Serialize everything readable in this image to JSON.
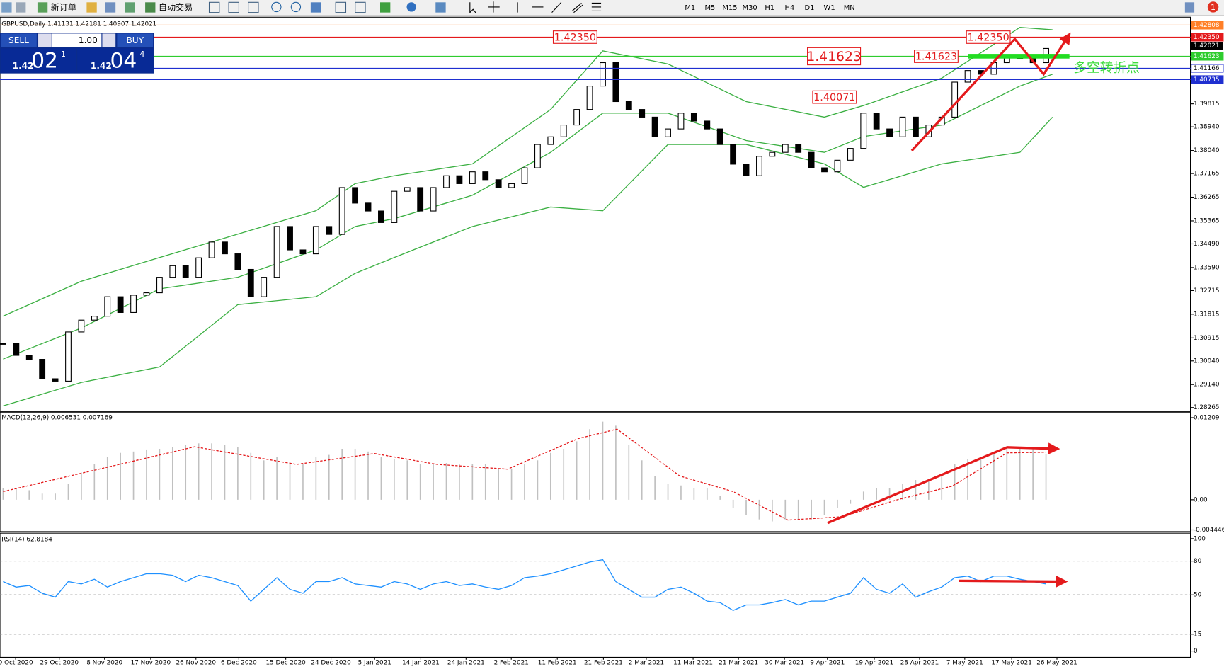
{
  "toolbar": {
    "new_order": "新订单",
    "auto_trading": "自动交易",
    "timeframes": [
      "M1",
      "M5",
      "M15",
      "M30",
      "H1",
      "H4",
      "D1",
      "W1",
      "MN"
    ],
    "notifications": "1"
  },
  "trade_panel": {
    "sell": "SELL",
    "lots": "1.00",
    "buy": "BUY",
    "bid": {
      "prefix": "1.42",
      "digits": "02",
      "pip": "1"
    },
    "ask": {
      "prefix": "1.42",
      "digits": "04",
      "pip": "4"
    }
  },
  "chart_data": [
    {
      "type": "candlestick",
      "title": "GBPUSD,Daily  1.41131 1.42181 1.40907 1.42021",
      "xlim": [
        -0.24,
        91.08
      ],
      "ylim": [
        1.2815,
        1.4305
      ],
      "close": [
        1.307,
        1.3025,
        1.301,
        1.2936,
        1.2927,
        1.3114,
        1.3159,
        1.3174,
        1.3248,
        1.3188,
        1.3254,
        1.3263,
        1.3322,
        1.3366,
        1.3322,
        1.3396,
        1.3456,
        1.3411,
        1.3352,
        1.3248,
        1.3322,
        1.3515,
        1.3426,
        1.3411,
        1.3515,
        1.3485,
        1.3663,
        1.3604,
        1.3574,
        1.353,
        1.3649,
        1.3663,
        1.3574,
        1.3663,
        1.3708,
        1.3678,
        1.3723,
        1.3693,
        1.3663,
        1.3678,
        1.3738,
        1.3827,
        1.3856,
        1.3901,
        1.396,
        1.4049,
        1.4138,
        1.399,
        1.396,
        1.3931,
        1.3856,
        1.3886,
        1.3946,
        1.3916,
        1.3886,
        1.3827,
        1.3752,
        1.3708,
        1.3782,
        1.3797,
        1.3827,
        1.3797,
        1.3738,
        1.3723,
        1.3767,
        1.3812,
        1.3946,
        1.3886,
        1.3856,
        1.3931,
        1.3856,
        1.3901,
        1.3931,
        1.4064,
        1.4108,
        1.4094,
        1.4138,
        1.4168,
        1.4153,
        1.4138,
        1.4192
      ],
      "bands": {
        "x": [
          0,
          6,
          12,
          18,
          24,
          27,
          30,
          36,
          42,
          46,
          51,
          57,
          63,
          66,
          72,
          78,
          80.5
        ],
        "upper": [
          1.3174,
          1.3307,
          1.3397,
          1.3486,
          1.3575,
          1.3678,
          1.3708,
          1.3753,
          1.396,
          1.4183,
          1.4133,
          1.399,
          1.3931,
          1.3975,
          1.4079,
          1.4272,
          1.4263
        ],
        "middle": [
          1.3011,
          1.3129,
          1.3278,
          1.3322,
          1.3426,
          1.3515,
          1.3545,
          1.3634,
          1.3797,
          1.3946,
          1.3946,
          1.3842,
          1.3797,
          1.3857,
          1.3901,
          1.4049,
          1.4094
        ],
        "lower": [
          1.2833,
          1.2922,
          1.2981,
          1.3218,
          1.3248,
          1.3337,
          1.3397,
          1.3515,
          1.3589,
          1.3575,
          1.3827,
          1.3827,
          1.3753,
          1.3664,
          1.3753,
          1.3797,
          1.3931
        ],
        "color": "#3cb043"
      },
      "levels": [
        {
          "value": 1.42808,
          "label": "1.42808",
          "color": "#ff7f27",
          "filled": true
        },
        {
          "value": 1.4235,
          "label": "1.42350",
          "color": "#e41a1c",
          "filled": true
        },
        {
          "value": 1.41623,
          "label": "1.41623",
          "color": "#2ecc2e",
          "filled": true
        },
        {
          "value": 1.41166,
          "label": "1.41166",
          "color": "#1f2fd0",
          "filled": false
        },
        {
          "value": 1.40735,
          "label": "1.40735",
          "color": "#1f2fd0",
          "filled": true
        }
      ],
      "last_price": 1.42021,
      "yticks": [
        1.39815,
        {
          "value": 1.3894,
          "label": "1.38940"
        },
        {
          "value": 1.3804,
          "label": "1.38040"
        },
        1.37165,
        1.36265,
        1.35365,
        {
          "value": 1.3449,
          "label": "1.34490"
        },
        {
          "value": 1.3359,
          "label": "1.33590"
        },
        1.32715,
        1.31815,
        1.30915,
        {
          "value": 1.3004,
          "label": "1.30040"
        },
        {
          "value": 1.2914,
          "label": "1.29140"
        },
        1.28265
      ],
      "annotations": [
        {
          "value": 1.4235,
          "label": "1.42350",
          "x": 42.2,
          "large": false
        },
        {
          "value": 1.41623,
          "label": "1.41623",
          "x": 61.7,
          "large": true
        },
        {
          "value": 1.41623,
          "label": "1.41623",
          "x": 69.9,
          "large": false
        },
        {
          "value": 1.40071,
          "label": "1.40071",
          "x": 62.1,
          "large": false
        },
        {
          "value": 1.4235,
          "label": "1.42350",
          "x": 73.9,
          "large": false
        }
      ],
      "note": {
        "text": "多空转折点",
        "value": 1.4117,
        "x": 82.1,
        "color": "#3ddc3d"
      }
    },
    {
      "type": "macd",
      "title": "MACD(12,26,9) 0.006531 0.007169",
      "xlim": [
        -0.24,
        91.08
      ],
      "ylim": [
        -0.0047,
        0.0129
      ],
      "histogram": [
        0.0017,
        0.0017,
        0.0014,
        0.0009,
        0.0009,
        0.0023,
        0.004,
        0.0052,
        0.0063,
        0.0069,
        0.0071,
        0.0074,
        0.0075,
        0.0078,
        0.0081,
        0.0083,
        0.0083,
        0.0081,
        0.0078,
        0.0069,
        0.0058,
        0.0063,
        0.0055,
        0.0052,
        0.0063,
        0.0066,
        0.0075,
        0.0075,
        0.0071,
        0.0063,
        0.006,
        0.0058,
        0.0052,
        0.0052,
        0.0054,
        0.0052,
        0.0052,
        0.0052,
        0.0046,
        0.0046,
        0.0052,
        0.0058,
        0.0069,
        0.0075,
        0.0086,
        0.0104,
        0.0115,
        0.0109,
        0.0081,
        0.0058,
        0.0035,
        0.0023,
        0.0021,
        0.0017,
        0.0017,
        0.0006,
        -0.0012,
        -0.0023,
        -0.0029,
        -0.0032,
        -0.0029,
        -0.0029,
        -0.0029,
        -0.0023,
        -0.0012,
        -0.0006,
        0.0012,
        0.0017,
        0.0017,
        0.0023,
        0.0029,
        0.0029,
        0.0035,
        0.0052,
        0.006,
        0.0063,
        0.0069,
        0.0075,
        0.0075,
        0.0075,
        0.0067
      ],
      "hist_color": "#c0c0c0",
      "signal": {
        "x": [
          0,
          14.7,
          22.5,
          28.5,
          33.3,
          38.7,
          44.1,
          47.1,
          51.9,
          56,
          60.2,
          64.4,
          68.6,
          72.8,
          77,
          80
        ],
        "values": [
          0.0012,
          0.0078,
          0.0052,
          0.0068,
          0.0052,
          0.0045,
          0.009,
          0.0104,
          0.0035,
          0.0012,
          -0.003,
          -0.0025,
          0.0,
          0.002,
          0.0069,
          0.007
        ],
        "color": "#e41a1c"
      },
      "yticks": [
        0.01209,
        {
          "value": 0,
          "label": "0.00"
        },
        -0.004446
      ]
    },
    {
      "type": "line",
      "title": "RSI(14) 62.8184",
      "xlim": [
        -0.24,
        91.08
      ],
      "ylim": [
        -5.6,
        104.2
      ],
      "color": "#1e90ff",
      "values": [
        61.8,
        56.9,
        58.3,
        51.4,
        47.9,
        61.8,
        59.7,
        63.9,
        56.9,
        61.8,
        65.3,
        68.8,
        68.8,
        67.4,
        61.8,
        67.4,
        65.3,
        61.8,
        58.3,
        44.4,
        54.9,
        65.3,
        54.9,
        51.4,
        61.8,
        61.8,
        65.3,
        59.7,
        58.3,
        56.9,
        61.8,
        59.7,
        54.9,
        59.7,
        61.8,
        58.3,
        59.7,
        56.9,
        54.9,
        58.3,
        65.3,
        66.7,
        68.8,
        72.2,
        75.7,
        79.2,
        81.3,
        61.8,
        54.9,
        47.9,
        47.9,
        54.9,
        56.9,
        51.4,
        44.4,
        43.1,
        36.1,
        41.0,
        41.0,
        43.1,
        45.8,
        41.0,
        44.4,
        44.4,
        47.9,
        51.4,
        65.3,
        54.9,
        51.4,
        59.7,
        47.9,
        52.8,
        56.9,
        65.3,
        66.7,
        61.8,
        66.7,
        66.7,
        63.9,
        61.8,
        59.7
      ],
      "levels": [
        80,
        50,
        15
      ],
      "yticks": [
        100,
        80,
        50,
        15,
        0
      ],
      "xticks": [
        {
          "value": 0.96,
          "label": "0 Oct 2020"
        },
        {
          "value": 4.31,
          "label": "29 Oct 2020"
        },
        {
          "value": 7.78,
          "label": "8 Nov 2020"
        },
        {
          "value": 11.32,
          "label": "17 Nov 2020"
        },
        {
          "value": 14.79,
          "label": "26 Nov 2020"
        },
        {
          "value": 18.08,
          "label": "6 Dec 2020"
        },
        {
          "value": 21.68,
          "label": "15 Dec 2020"
        },
        {
          "value": 25.15,
          "label": "24 Dec 2020"
        },
        {
          "value": 28.5,
          "label": "5 Jan 2021"
        },
        {
          "value": 32.04,
          "label": "14 Jan 2021"
        },
        {
          "value": 35.51,
          "label": "24 Jan 2021"
        },
        {
          "value": 38.98,
          "label": "2 Feb 2021"
        },
        {
          "value": 42.51,
          "label": "11 Feb 2021"
        },
        {
          "value": 46.05,
          "label": "21 Feb 2021"
        },
        {
          "value": 49.34,
          "label": "2 Mar 2021"
        },
        {
          "value": 52.93,
          "label": "11 Mar 2021"
        },
        {
          "value": 56.41,
          "label": "21 Mar 2021"
        },
        {
          "value": 59.94,
          "label": "30 Mar 2021"
        },
        {
          "value": 63.23,
          "label": "9 Apr 2021"
        },
        {
          "value": 66.83,
          "label": "19 Apr 2021"
        },
        {
          "value": 70.3,
          "label": "28 Apr 2021"
        },
        {
          "value": 73.77,
          "label": "7 May 2021"
        },
        {
          "value": 77.37,
          "label": "17 May 2021"
        },
        {
          "value": 80.84,
          "label": "26 May 2021"
        }
      ]
    }
  ]
}
